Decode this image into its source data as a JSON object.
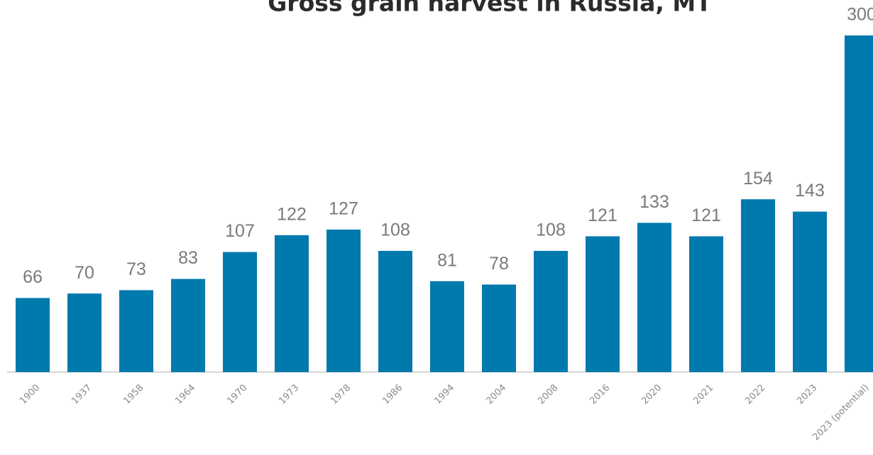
{
  "chart_data": {
    "type": "bar",
    "title": "Gross grain harvest in Russia, MT",
    "categories": [
      "1900",
      "1937",
      "1958",
      "1964",
      "1970",
      "1973",
      "1978",
      "1986",
      "1994",
      "2004",
      "2008",
      "2016",
      "2020",
      "2021",
      "2022",
      "2023",
      "2023 (potential)"
    ],
    "values": [
      66,
      70,
      73,
      83,
      107,
      122,
      127,
      108,
      81,
      78,
      108,
      121,
      133,
      121,
      154,
      143,
      300
    ],
    "color": "#0079ad",
    "ylim": [
      0,
      300
    ]
  }
}
